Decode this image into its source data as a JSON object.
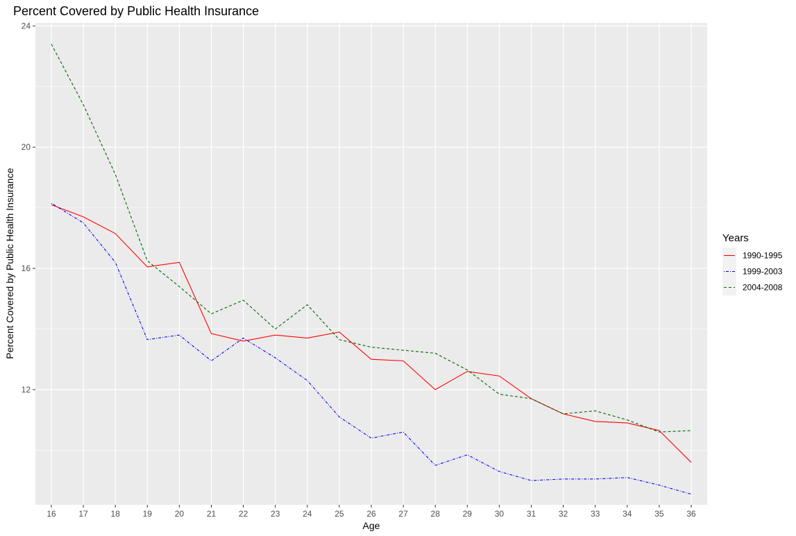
{
  "chart_data": {
    "type": "line",
    "title": "Percent Covered by Public Health Insurance",
    "xlabel": "Age",
    "ylabel": "Percent Covered by Public Health Insurance",
    "x": [
      16,
      17,
      18,
      19,
      20,
      21,
      22,
      23,
      24,
      25,
      26,
      27,
      28,
      29,
      30,
      31,
      32,
      33,
      34,
      35,
      36
    ],
    "yticks": [
      12,
      16,
      20,
      24
    ],
    "ylim": [
      8.2,
      24.1
    ],
    "grid": true,
    "legend": {
      "title": "Years",
      "position": "right"
    },
    "series": [
      {
        "name": "1990-1995",
        "color": "#ff0000",
        "dash": "solid",
        "values": [
          18.1,
          17.7,
          17.15,
          16.05,
          16.2,
          13.85,
          13.6,
          13.8,
          13.7,
          13.9,
          13.0,
          12.95,
          12.0,
          12.6,
          12.45,
          11.7,
          11.2,
          10.95,
          10.9,
          10.65,
          9.6
        ]
      },
      {
        "name": "1999-2003",
        "color": "#0000ff",
        "dash": "dotdash",
        "values": [
          18.15,
          17.5,
          16.2,
          13.65,
          13.8,
          12.95,
          13.7,
          13.05,
          12.3,
          11.1,
          10.4,
          10.6,
          9.5,
          9.85,
          9.3,
          9.0,
          9.05,
          9.05,
          9.1,
          8.85,
          8.55
        ]
      },
      {
        "name": "2004-2008",
        "color": "#006400",
        "dash": "dashed",
        "values": [
          23.4,
          21.4,
          19.1,
          16.25,
          15.4,
          14.5,
          14.95,
          14.0,
          14.8,
          13.65,
          13.4,
          13.3,
          13.2,
          12.65,
          11.85,
          11.7,
          11.2,
          11.3,
          11.0,
          10.6,
          10.65
        ]
      }
    ]
  }
}
